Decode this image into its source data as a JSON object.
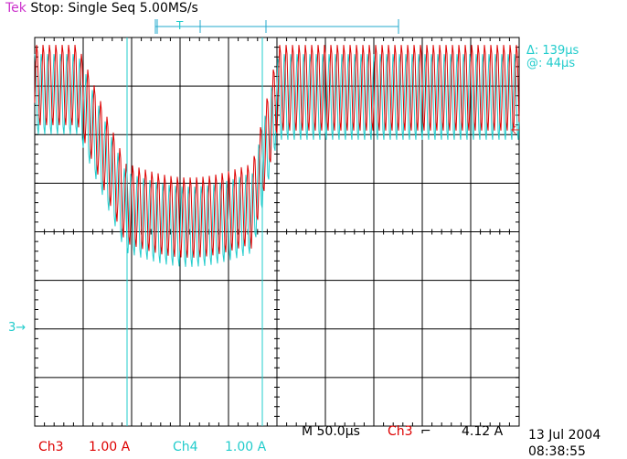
{
  "header": {
    "brand": "Tek",
    "status": "Stop: Single Seq",
    "sample_rate": "5.00MS/s",
    "trigger_marker": "T"
  },
  "cursor_readout": {
    "delta": "Δ: 139µs",
    "at": "@: 44µs"
  },
  "channel3": {
    "label": "Ch3",
    "scale": "1.00 A",
    "ground_marker": "3→"
  },
  "channel4": {
    "label": "Ch4",
    "scale": "1.00 A"
  },
  "timebase": {
    "label": "M 50.0µs",
    "trigger_source": "Ch3",
    "trigger_slope": "⌐",
    "trigger_level": "4.12 A"
  },
  "timestamp": {
    "date": "13 Jul 2004",
    "time": "08:38:55"
  },
  "colors": {
    "ch3": "#dd0000",
    "ch4": "#22cccc",
    "brand": "#cc33cc",
    "grid": "#000000"
  }
}
